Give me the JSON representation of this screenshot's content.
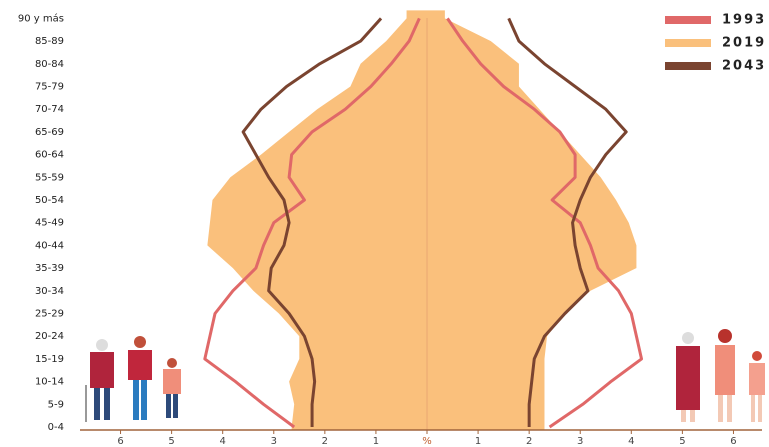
{
  "chart_data": {
    "type": "pyramid",
    "categories": [
      "0-4",
      "5-9",
      "10-14",
      "15-19",
      "20-24",
      "25-29",
      "30-34",
      "35-39",
      "40-44",
      "45-49",
      "50-54",
      "55-59",
      "60-64",
      "65-69",
      "70-74",
      "75-79",
      "80-84",
      "85-89",
      "90 y más"
    ],
    "series": [
      {
        "name": "1993",
        "color": "#e06868",
        "style": "line",
        "male": [
          2.6,
          3.2,
          3.75,
          4.35,
          4.25,
          4.15,
          3.8,
          3.35,
          3.2,
          3.0,
          2.4,
          2.7,
          2.65,
          2.25,
          1.6,
          1.1,
          0.7,
          0.35,
          0.15
        ],
        "female": [
          2.4,
          3.05,
          3.6,
          4.2,
          4.1,
          4.0,
          3.75,
          3.35,
          3.2,
          3.0,
          2.45,
          2.9,
          2.9,
          2.6,
          2.1,
          1.5,
          1.05,
          0.7,
          0.4
        ]
      },
      {
        "name": "2019",
        "color": "#fac07c",
        "style": "area",
        "male": [
          2.65,
          2.6,
          2.7,
          2.5,
          2.5,
          2.9,
          3.4,
          3.8,
          4.3,
          4.25,
          4.2,
          3.85,
          3.25,
          2.7,
          2.15,
          1.5,
          1.3,
          0.8,
          0.4
        ],
        "female": [
          2.3,
          2.3,
          2.3,
          2.3,
          2.35,
          2.7,
          3.2,
          4.1,
          4.1,
          3.95,
          3.7,
          3.4,
          3.0,
          2.6,
          2.2,
          1.8,
          1.8,
          1.25,
          0.35
        ]
      },
      {
        "name": "2043",
        "color": "#7a4430",
        "style": "line",
        "male": [
          2.25,
          2.25,
          2.2,
          2.25,
          2.4,
          2.7,
          3.1,
          3.05,
          2.8,
          2.7,
          2.8,
          3.1,
          3.35,
          3.6,
          3.25,
          2.75,
          2.1,
          1.3,
          0.9
        ],
        "female": [
          2.0,
          2.0,
          2.05,
          2.1,
          2.3,
          2.7,
          3.15,
          3.0,
          2.9,
          2.85,
          3.0,
          3.2,
          3.5,
          3.9,
          3.5,
          2.9,
          2.3,
          1.8,
          1.6
        ]
      }
    ],
    "xlim": [
      -6.5,
      6.5
    ],
    "xticks": [
      {
        "value": -6,
        "label": "6"
      },
      {
        "value": -5,
        "label": "5"
      },
      {
        "value": -4,
        "label": "4"
      },
      {
        "value": -3,
        "label": "3"
      },
      {
        "value": -2,
        "label": "2"
      },
      {
        "value": -1,
        "label": "1"
      },
      {
        "value": 0,
        "label": "%"
      },
      1,
      2,
      3,
      4,
      5,
      6
    ],
    "legend": "top-right"
  }
}
